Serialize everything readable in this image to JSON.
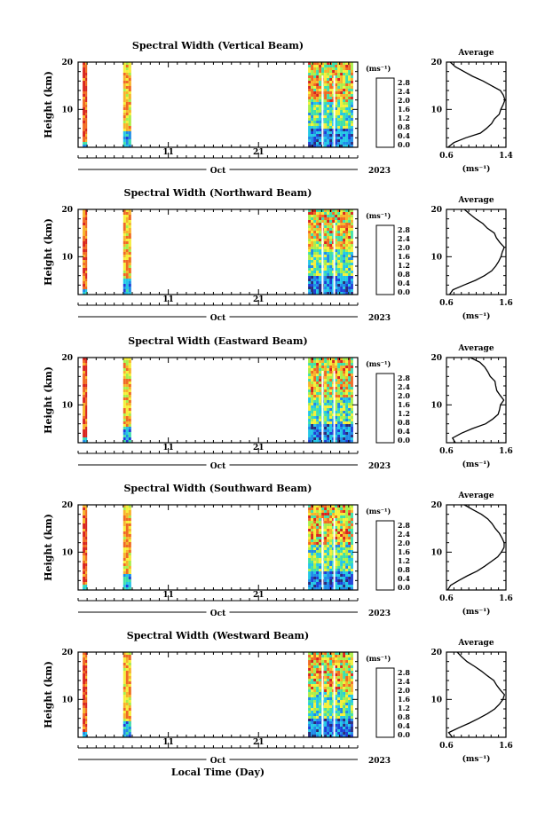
{
  "chart_data": [
    {
      "type": "heatmap",
      "title": "Spectral Width (Vertical Beam)",
      "ylabel": "Height (km)",
      "xlabel": "",
      "month": "Oct",
      "year": "2023",
      "x_ticks": [
        "11",
        "21"
      ],
      "y_ticks": [
        "10",
        "20"
      ],
      "ylim": [
        2,
        20
      ],
      "xlim": [
        1,
        32
      ],
      "colorbar": {
        "unit": "(ms⁻¹)",
        "ticks": [
          "2.8",
          "2.4",
          "2.0",
          "1.6",
          "1.2",
          "0.8",
          "0.4",
          "0.0"
        ]
      },
      "data_blocks": [
        {
          "x": [
            1.5,
            2.0
          ],
          "level": "high"
        },
        {
          "x": [
            6.0,
            6.9
          ],
          "level": "medium"
        },
        {
          "x": [
            26.5,
            31.5
          ],
          "level": "mixed"
        }
      ],
      "profile": {
        "title": "Average",
        "xlabel": "(ms⁻¹)",
        "xticks": [
          "0.6",
          "1.4"
        ],
        "yticks": [
          "10",
          "20"
        ],
        "xlim": [
          0.6,
          1.4
        ],
        "ylim": [
          2,
          20
        ],
        "height": [
          2,
          3,
          4,
          5,
          6,
          7,
          8,
          9,
          10,
          11,
          12,
          13,
          14,
          15,
          16,
          17,
          18,
          19,
          20
        ],
        "width": [
          0.62,
          0.7,
          0.85,
          1.05,
          1.15,
          1.22,
          1.25,
          1.3,
          1.34,
          1.36,
          1.38,
          1.36,
          1.32,
          1.2,
          1.08,
          0.95,
          0.85,
          0.72,
          0.65
        ]
      }
    },
    {
      "type": "heatmap",
      "title": "Spectral Width (Northward Beam)",
      "ylabel": "Height (km)",
      "xlabel": "",
      "month": "Oct",
      "year": "2023",
      "x_ticks": [
        "11",
        "21"
      ],
      "y_ticks": [
        "10",
        "20"
      ],
      "ylim": [
        2,
        20
      ],
      "xlim": [
        1,
        32
      ],
      "colorbar": {
        "unit": "(ms⁻¹)",
        "ticks": [
          "2.8",
          "2.4",
          "2.0",
          "1.6",
          "1.2",
          "0.8",
          "0.4",
          "0.0"
        ]
      },
      "data_blocks": [
        {
          "x": [
            1.5,
            2.0
          ],
          "level": "high"
        },
        {
          "x": [
            6.0,
            6.9
          ],
          "level": "medium"
        },
        {
          "x": [
            26.5,
            31.5
          ],
          "level": "mixed"
        }
      ],
      "profile": {
        "title": "Average",
        "xlabel": "(ms⁻¹)",
        "xticks": [
          "0.6",
          "1.6"
        ],
        "yticks": [
          "10",
          "20"
        ],
        "xlim": [
          0.6,
          1.6
        ],
        "ylim": [
          2,
          20
        ],
        "height": [
          2,
          3,
          4,
          5,
          6,
          7,
          8,
          9,
          10,
          11,
          12,
          13,
          14,
          15,
          16,
          17,
          18,
          19,
          20
        ],
        "width": [
          0.65,
          0.72,
          0.9,
          1.1,
          1.25,
          1.35,
          1.42,
          1.48,
          1.52,
          1.55,
          1.56,
          1.5,
          1.45,
          1.4,
          1.3,
          1.2,
          1.1,
          1.0,
          0.9
        ]
      }
    },
    {
      "type": "heatmap",
      "title": "Spectral Width (Eastward Beam)",
      "ylabel": "Height (km)",
      "xlabel": "",
      "month": "Oct",
      "year": "2023",
      "x_ticks": [
        "11",
        "21"
      ],
      "y_ticks": [
        "10",
        "20"
      ],
      "ylim": [
        2,
        20
      ],
      "xlim": [
        1,
        32
      ],
      "colorbar": {
        "unit": "(ms⁻¹)",
        "ticks": [
          "2.8",
          "2.4",
          "2.0",
          "1.6",
          "1.2",
          "0.8",
          "0.4",
          "0.0"
        ]
      },
      "data_blocks": [
        {
          "x": [
            1.5,
            2.0
          ],
          "level": "high"
        },
        {
          "x": [
            6.0,
            6.9
          ],
          "level": "medium"
        },
        {
          "x": [
            26.5,
            31.5
          ],
          "level": "mixed"
        }
      ],
      "profile": {
        "title": "Average",
        "xlabel": "(ms⁻¹)",
        "xticks": [
          "0.6",
          "1.6"
        ],
        "yticks": [
          "10",
          "20"
        ],
        "xlim": [
          0.6,
          1.6
        ],
        "ylim": [
          2,
          20
        ],
        "height": [
          2,
          3,
          4,
          5,
          6,
          7,
          8,
          9,
          10,
          11,
          12,
          13,
          14,
          15,
          16,
          17,
          18,
          19,
          20
        ],
        "width": [
          0.75,
          0.7,
          0.85,
          1.05,
          1.25,
          1.38,
          1.46,
          1.5,
          1.52,
          1.55,
          1.5,
          1.45,
          1.42,
          1.4,
          1.35,
          1.3,
          1.25,
          1.15,
          1.0
        ]
      }
    },
    {
      "type": "heatmap",
      "title": "Spectral Width (Southward Beam)",
      "ylabel": "Height (km)",
      "xlabel": "",
      "month": "Oct",
      "year": "2023",
      "x_ticks": [
        "11",
        "21"
      ],
      "y_ticks": [
        "10",
        "20"
      ],
      "ylim": [
        2,
        20
      ],
      "xlim": [
        1,
        32
      ],
      "colorbar": {
        "unit": "(ms⁻¹)",
        "ticks": [
          "2.8",
          "2.4",
          "2.0",
          "1.6",
          "1.2",
          "0.8",
          "0.4",
          "0.0"
        ]
      },
      "data_blocks": [
        {
          "x": [
            1.5,
            2.0
          ],
          "level": "high"
        },
        {
          "x": [
            6.0,
            6.9
          ],
          "level": "medium"
        },
        {
          "x": [
            26.5,
            31.5
          ],
          "level": "mixed"
        }
      ],
      "profile": {
        "title": "Average",
        "xlabel": "(ms⁻¹)",
        "xticks": [
          "0.6",
          "1.6"
        ],
        "yticks": [
          "10",
          "20"
        ],
        "xlim": [
          0.6,
          1.6
        ],
        "ylim": [
          2,
          20
        ],
        "height": [
          2,
          3,
          4,
          5,
          6,
          7,
          8,
          9,
          10,
          11,
          12,
          13,
          14,
          15,
          16,
          17,
          18,
          19,
          20
        ],
        "width": [
          0.62,
          0.68,
          0.8,
          0.95,
          1.1,
          1.25,
          1.35,
          1.45,
          1.52,
          1.56,
          1.58,
          1.52,
          1.48,
          1.42,
          1.38,
          1.3,
          1.2,
          1.05,
          0.9
        ]
      }
    },
    {
      "type": "heatmap",
      "title": "Spectral Width (Westward Beam)",
      "ylabel": "Height (km)",
      "xlabel": "Local Time (Day)",
      "month": "Oct",
      "year": "2023",
      "x_ticks": [
        "11",
        "21"
      ],
      "y_ticks": [
        "10",
        "20"
      ],
      "ylim": [
        2,
        20
      ],
      "xlim": [
        1,
        32
      ],
      "colorbar": {
        "unit": "(ms⁻¹)",
        "ticks": [
          "2.8",
          "2.4",
          "2.0",
          "1.6",
          "1.2",
          "0.8",
          "0.4",
          "0.0"
        ]
      },
      "data_blocks": [
        {
          "x": [
            1.5,
            2.0
          ],
          "level": "high"
        },
        {
          "x": [
            6.0,
            6.9
          ],
          "level": "medium"
        },
        {
          "x": [
            26.5,
            31.5
          ],
          "level": "mixed"
        }
      ],
      "profile": {
        "title": "Average",
        "xlabel": "(ms⁻¹)",
        "xticks": [
          "0.6",
          "1.6"
        ],
        "yticks": [
          "10",
          "20"
        ],
        "xlim": [
          0.6,
          1.6
        ],
        "ylim": [
          2,
          20
        ],
        "height": [
          2,
          3,
          4,
          5,
          6,
          7,
          8,
          9,
          10,
          11,
          12,
          13,
          14,
          15,
          16,
          17,
          18,
          19,
          20
        ],
        "width": [
          0.7,
          0.65,
          0.8,
          0.98,
          1.15,
          1.3,
          1.42,
          1.5,
          1.55,
          1.58,
          1.52,
          1.45,
          1.38,
          1.3,
          1.2,
          1.08,
          0.95,
          0.85,
          0.78
        ]
      }
    }
  ],
  "colors": [
    "#2a2a7a",
    "#1f3fd6",
    "#1f8be8",
    "#22c7e6",
    "#3fe0a8",
    "#a8ef4a",
    "#f5ef3a",
    "#f7b32a",
    "#f06a22",
    "#d8261e"
  ]
}
